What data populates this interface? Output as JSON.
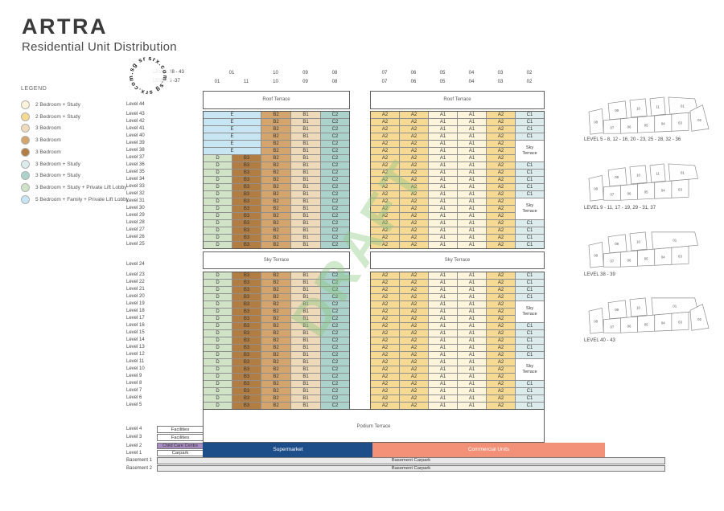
{
  "header": {
    "title": "ARTRA",
    "subtitle": "Residential Unit Distribution"
  },
  "legend": {
    "title": "LEGEND",
    "items": [
      {
        "label": "2 Bedroom + Study",
        "unit": "A1",
        "color": "#fdf4dc"
      },
      {
        "label": "2 Bedroom + Study",
        "unit": "A2",
        "color": "#f6d993"
      },
      {
        "label": "3 Bedroom",
        "unit": "B1",
        "color": "#eedab8"
      },
      {
        "label": "3 Bedroom",
        "unit": "B2",
        "color": "#d3a46c"
      },
      {
        "label": "3 Bedroom",
        "unit": "B3",
        "color": "#b27d42"
      },
      {
        "label": "3 Bedroom + Study",
        "unit": "C1",
        "color": "#dcebec"
      },
      {
        "label": "3 Bedroom + Study",
        "unit": "C2",
        "color": "#abd3cc"
      },
      {
        "label": "3 Bedroom + Study + Private Lift Lobby",
        "unit": "D",
        "color": "#d0e3c7"
      },
      {
        "label": "5 Bedroom + Family + Private Lift Lobby",
        "unit": "E",
        "color": "#c8e5f3"
      }
    ]
  },
  "watermark": {
    "circle_text": "srx.com.sg",
    "draft_text": "DRAFT",
    "draft_color": "#8cc682"
  },
  "column_headers": {
    "row1_label": "LEVEL 38 - 43",
    "row2_label": "LEVEL 5 -37",
    "row1_left": [
      "01",
      "10",
      "09",
      "08"
    ],
    "row2_left": [
      "01",
      "11",
      "10",
      "09",
      "08"
    ],
    "right": [
      "07",
      "06",
      "05",
      "04",
      "03",
      "02"
    ]
  },
  "grid": {
    "roof_label": "Roof Terrace",
    "sky_label": "Sky Terrace",
    "podium_label": "Podium Terrace",
    "sky_cell_text": "Sky Terrace",
    "left_units_upper": [
      "E",
      "B2",
      "B1",
      "C2"
    ],
    "left_units_lower": [
      "D",
      "B3",
      "B2",
      "B1",
      "C2"
    ],
    "right_units": [
      "A2",
      "A2",
      "A1",
      "A1",
      "A2"
    ],
    "unit_colors": {
      "A1": "#fdf4dc",
      "A2": "#f6d993",
      "B1": "#eedab8",
      "B2": "#d3a46c",
      "B3": "#b27d42",
      "C1": "#dcebec",
      "C2": "#abd3cc",
      "D": "#d0e3c7",
      "E": "#c8e5f3"
    },
    "floors": [
      {
        "label": "Level 44",
        "n": 44,
        "section": "roof",
        "end": ""
      },
      {
        "label": "Level 43",
        "n": 43,
        "section": "top",
        "end": "C1"
      },
      {
        "label": "Level 42",
        "n": 42,
        "section": "top",
        "end": "C1"
      },
      {
        "label": "Level 41",
        "n": 41,
        "section": "top",
        "end": "C1"
      },
      {
        "label": "Level 40",
        "n": 40,
        "section": "top",
        "end": "C1"
      },
      {
        "label": "Level 39",
        "n": 39,
        "section": "top",
        "end": "S"
      },
      {
        "label": "Level 38",
        "n": 38,
        "section": "top",
        "end": "S"
      },
      {
        "label": "Level 37",
        "n": 37,
        "section": "mid",
        "end": "S"
      },
      {
        "label": "Level 36",
        "n": 36,
        "section": "mid",
        "end": "C1"
      },
      {
        "label": "Level 35",
        "n": 35,
        "section": "mid",
        "end": "C1"
      },
      {
        "label": "Level 34",
        "n": 34,
        "section": "mid",
        "end": "C1"
      },
      {
        "label": "Level 33",
        "n": 33,
        "section": "mid",
        "end": "C1"
      },
      {
        "label": "Level 32",
        "n": 32,
        "section": "mid",
        "end": "C1"
      },
      {
        "label": "Level 31",
        "n": 31,
        "section": "mid",
        "end": "S"
      },
      {
        "label": "Level 30",
        "n": 30,
        "section": "mid",
        "end": "S"
      },
      {
        "label": "Level 29",
        "n": 29,
        "section": "mid",
        "end": "S"
      },
      {
        "label": "Level 28",
        "n": 28,
        "section": "mid",
        "end": "C1"
      },
      {
        "label": "Level 27",
        "n": 27,
        "section": "mid",
        "end": "C1"
      },
      {
        "label": "Level 26",
        "n": 26,
        "section": "mid",
        "end": "C1"
      },
      {
        "label": "Level 25",
        "n": 25,
        "section": "mid",
        "end": "C1"
      },
      {
        "label": "Level 24",
        "n": 24,
        "section": "sky",
        "end": ""
      },
      {
        "label": "Level 23",
        "n": 23,
        "section": "bot",
        "end": "C1"
      },
      {
        "label": "Level 22",
        "n": 22,
        "section": "bot",
        "end": "C1"
      },
      {
        "label": "Level 21",
        "n": 21,
        "section": "bot",
        "end": "C1"
      },
      {
        "label": "Level 20",
        "n": 20,
        "section": "bot",
        "end": "C1"
      },
      {
        "label": "Level 19",
        "n": 19,
        "section": "bot",
        "end": "S"
      },
      {
        "label": "Level 18",
        "n": 18,
        "section": "bot",
        "end": "S"
      },
      {
        "label": "Level 17",
        "n": 17,
        "section": "bot",
        "end": "S"
      },
      {
        "label": "Level 16",
        "n": 16,
        "section": "bot",
        "end": "C1"
      },
      {
        "label": "Level 15",
        "n": 15,
        "section": "bot",
        "end": "C1"
      },
      {
        "label": "Level 14",
        "n": 14,
        "section": "bot",
        "end": "C1"
      },
      {
        "label": "Level 13",
        "n": 13,
        "section": "bot",
        "end": "C1"
      },
      {
        "label": "Level 12",
        "n": 12,
        "section": "bot",
        "end": "C1"
      },
      {
        "label": "Level 11",
        "n": 11,
        "section": "bot",
        "end": "S"
      },
      {
        "label": "Level 10",
        "n": 10,
        "section": "bot",
        "end": "S"
      },
      {
        "label": "Level 9",
        "n": 9,
        "section": "bot",
        "end": "S"
      },
      {
        "label": "Level 8",
        "n": 8,
        "section": "bot",
        "end": "C1"
      },
      {
        "label": "Level 7",
        "n": 7,
        "section": "bot",
        "end": "C1"
      },
      {
        "label": "Level 6",
        "n": 6,
        "section": "bot",
        "end": "C1"
      },
      {
        "label": "Level 5",
        "n": 5,
        "section": "bot",
        "end": "C1"
      }
    ]
  },
  "bottom": {
    "rows": [
      {
        "label": "Level 4",
        "box": "Facilities"
      },
      {
        "label": "Level 3",
        "box": "Facilities"
      },
      {
        "label": "Level 2",
        "box": "Child Care Centre"
      },
      {
        "label": "Level 1",
        "box": "Carpark"
      }
    ],
    "supermarket": "Supermarket",
    "commercial": "Commercial Units",
    "basements": [
      {
        "label": "Basement 1",
        "box": "Basement Carpark"
      },
      {
        "label": "Basement 2",
        "box": "Basement Carpark"
      }
    ],
    "colors": {
      "child_care": "#a78cc2",
      "supermarket": "#1d4e8a",
      "commercial": "#f29078",
      "basement": "#e9e9e9"
    }
  },
  "plans": [
    {
      "label": "LEVEL 5 - 8, 12 - 16, 20 - 23, 25 - 28, 32 - 36",
      "units_top": [
        "09",
        "10",
        "11",
        "01"
      ],
      "units_bottom": [
        "08",
        "07",
        "06",
        "05",
        "04",
        "03",
        "02"
      ]
    },
    {
      "label": "LEVEL 9 - 11, 17 - 19, 29 - 31, 37",
      "units_top": [
        "09",
        "10",
        "11",
        "01"
      ],
      "units_bottom": [
        "08",
        "07",
        "06",
        "05",
        "04",
        "03"
      ]
    },
    {
      "label": "LEVEL 38 - 39",
      "units_top": [
        "09",
        "10",
        "01"
      ],
      "units_bottom": [
        "08",
        "07",
        "06",
        "05",
        "04",
        "03"
      ]
    },
    {
      "label": "LEVEL 40 - 43",
      "units_top": [
        "09",
        "10",
        "01"
      ],
      "units_bottom": [
        "08",
        "07",
        "06",
        "05",
        "04",
        "03",
        "02"
      ]
    }
  ]
}
